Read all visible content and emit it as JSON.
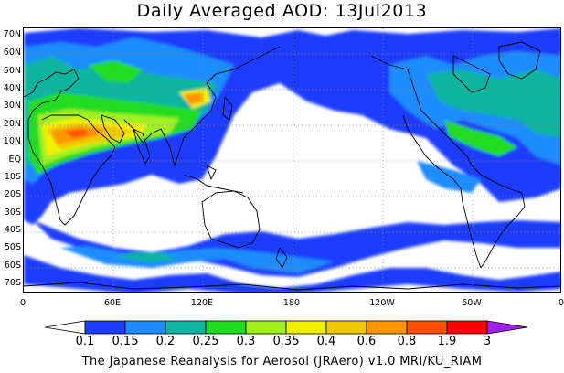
{
  "title": "Daily Averaged AOD: 13Jul2013",
  "footer": "The Japanese Reanalysis for Aerosol (JRAero) v1.0 MRI/KU_RIAM",
  "map": {
    "lat_labels": [
      "70N",
      "60N",
      "50N",
      "40N",
      "30N",
      "20N",
      "10N",
      "EQ",
      "10S",
      "20S",
      "30S",
      "40S",
      "50S",
      "60S",
      "70S"
    ],
    "lon_labels": [
      "0",
      "60E",
      "120E",
      "180",
      "120W",
      "60W",
      "0"
    ]
  },
  "colorbar": {
    "levels": [
      "0.1",
      "0.15",
      "0.2",
      "0.25",
      "0.3",
      "0.35",
      "0.4",
      "0.6",
      "0.8",
      "1.9",
      "3"
    ],
    "colors": [
      "#ffffff",
      "#1e3cff",
      "#1e8cff",
      "#10b4a0",
      "#20dc20",
      "#a0f020",
      "#f0f000",
      "#f0c800",
      "#ff9600",
      "#ff5000",
      "#ff0000",
      "#a020f0"
    ]
  }
}
